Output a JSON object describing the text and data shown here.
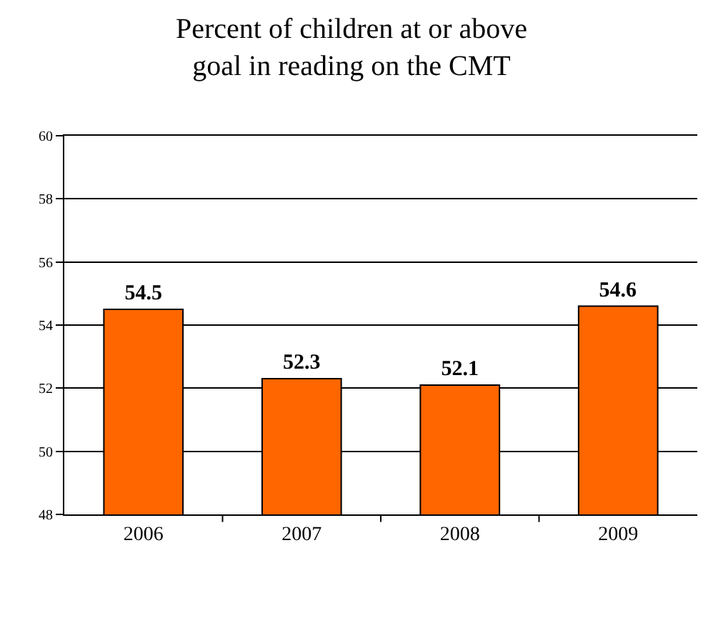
{
  "chart_data": {
    "type": "bar",
    "title": "Percent of children at or above\ngoal in reading on the CMT",
    "categories": [
      "2006",
      "2007",
      "2008",
      "2009"
    ],
    "values": [
      54.5,
      52.3,
      52.1,
      54.6
    ],
    "color": "#ff6600",
    "ylim": [
      48,
      60
    ],
    "yticks": [
      48,
      50,
      52,
      54,
      56,
      58,
      60
    ],
    "grid": "y",
    "data_labels": true,
    "legend": false
  }
}
